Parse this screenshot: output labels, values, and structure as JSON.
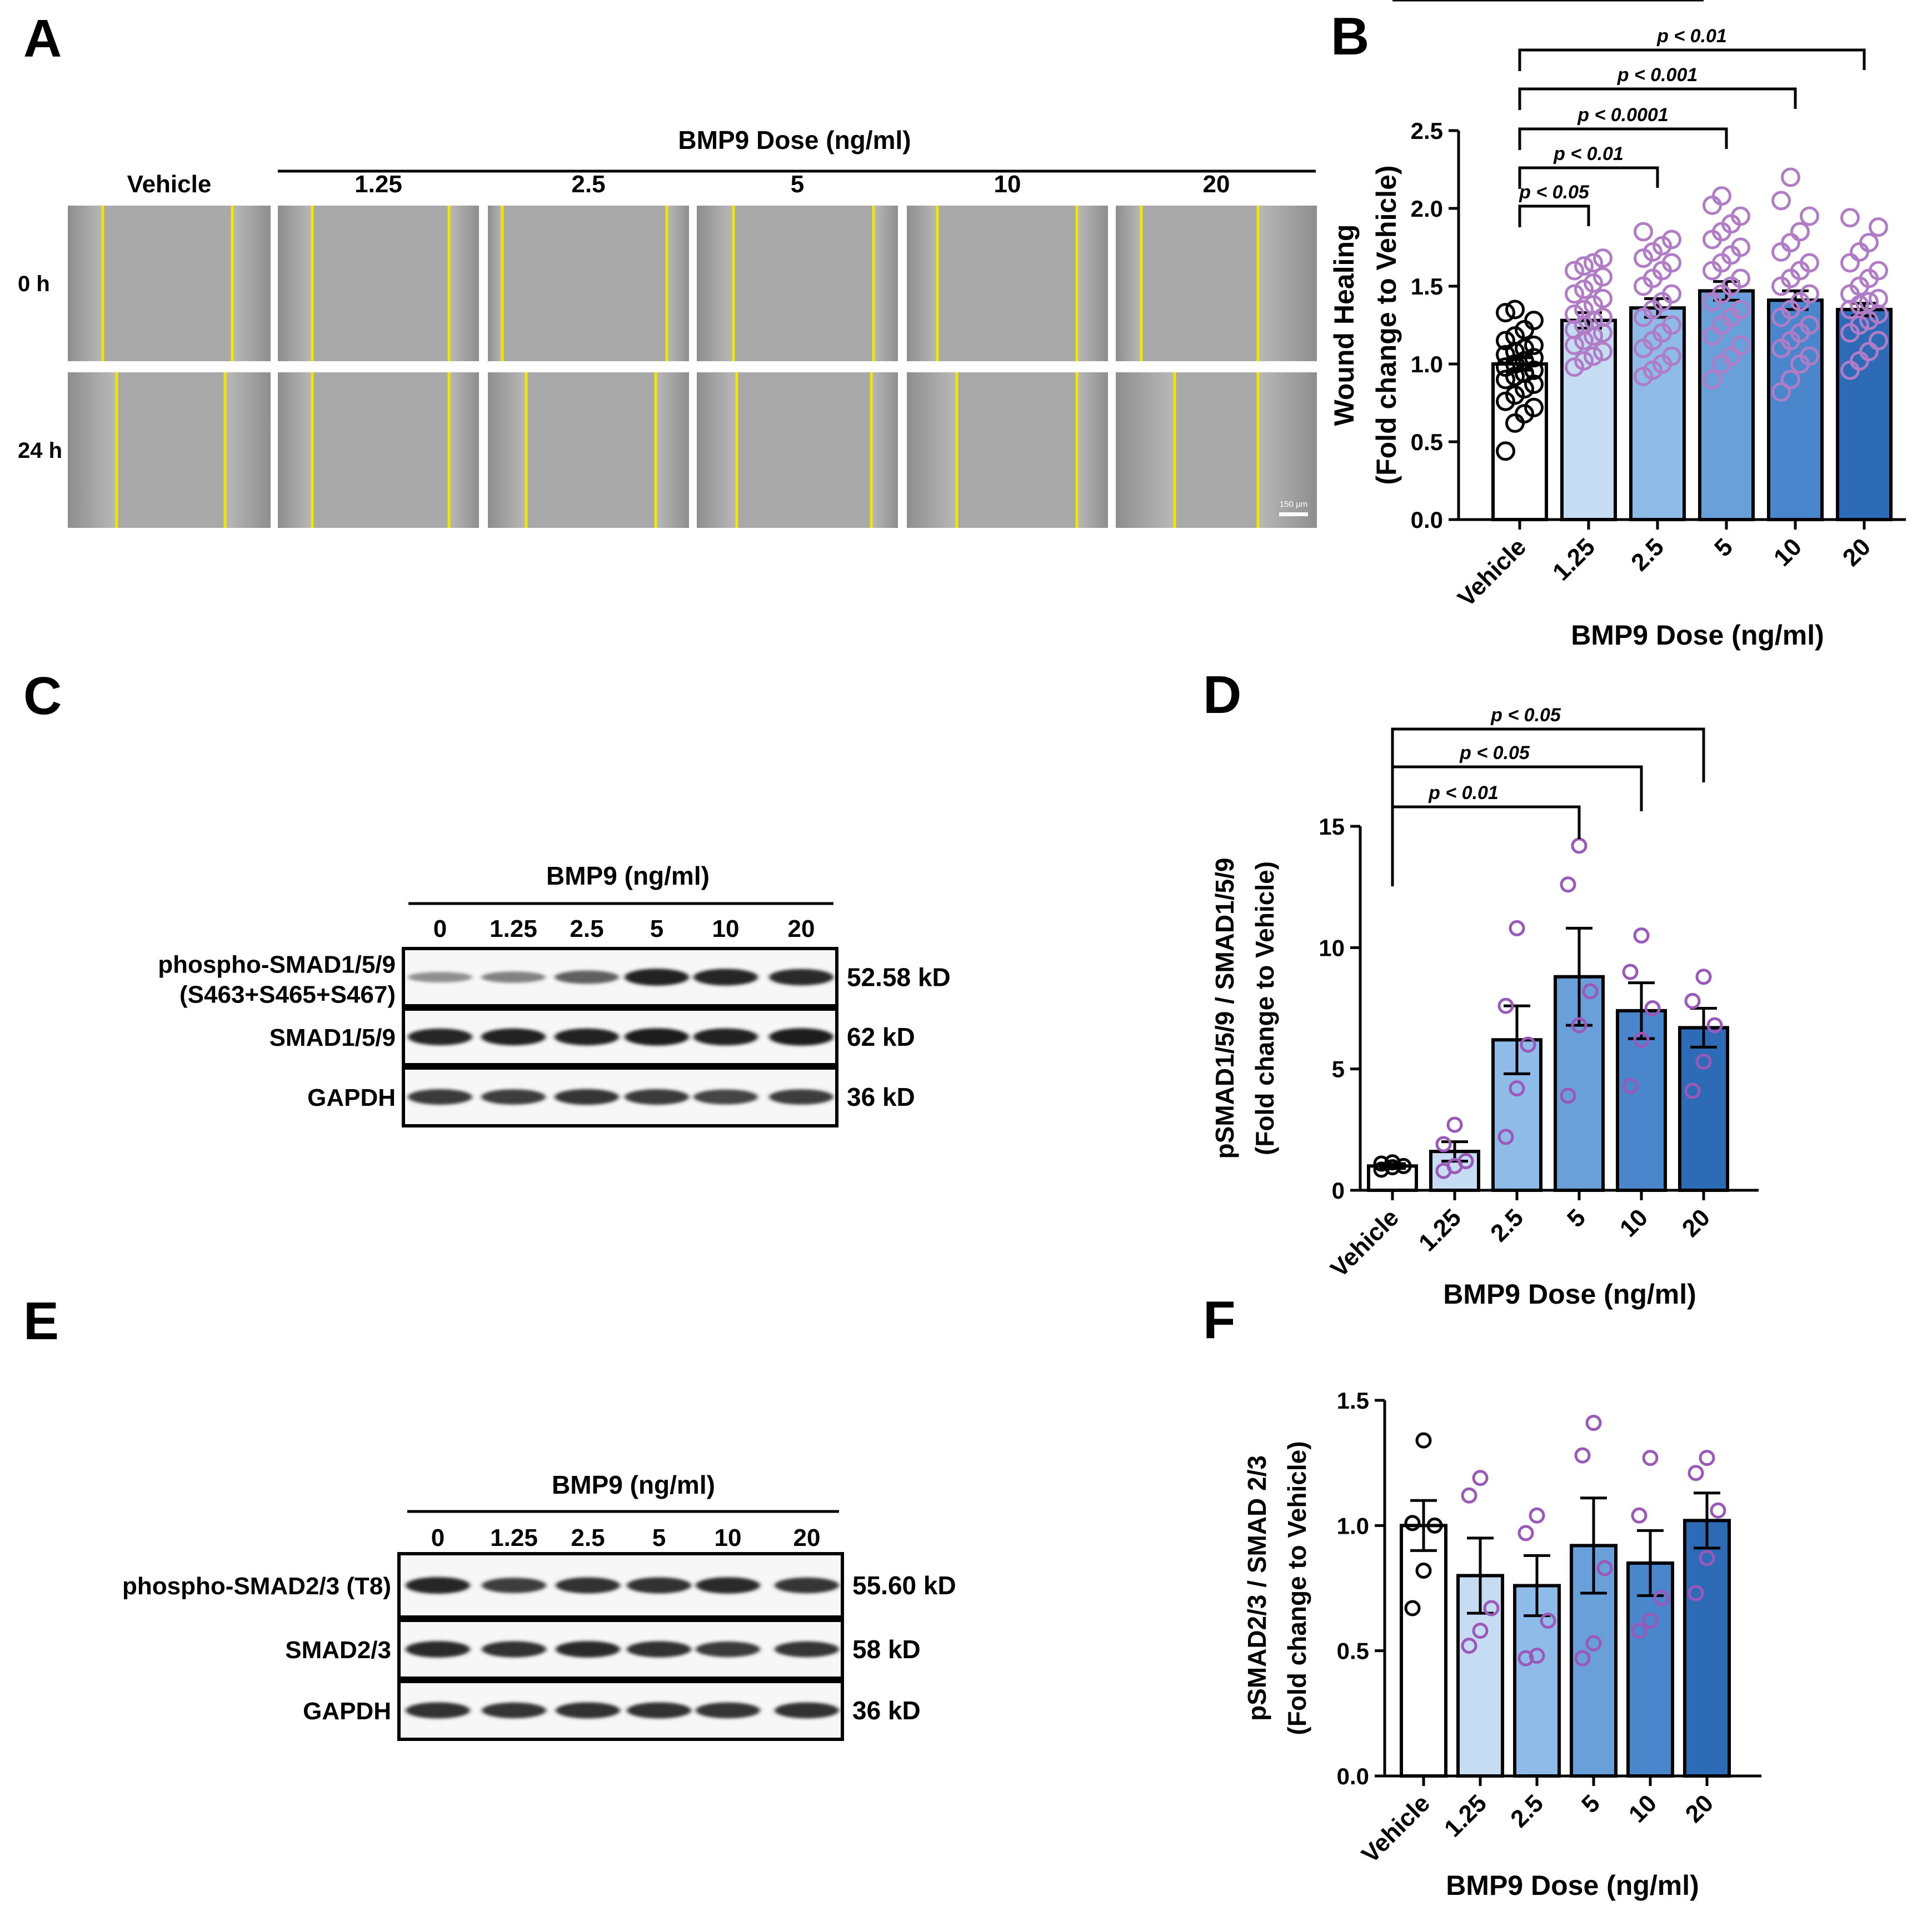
{
  "panels": {
    "A": {
      "letter": "A",
      "dose_header": "BMP9 Dose (ng/ml)",
      "columns": [
        "Vehicle",
        "1.25",
        "2.5",
        "5",
        "10",
        "20"
      ],
      "rows": [
        "0 h",
        "24 h"
      ],
      "scale_bar": "150 µm",
      "line_color": "#f2e500"
    },
    "C": {
      "letter": "C",
      "treatment_label": "BMP9 (ng/ml)",
      "lanes": [
        "0",
        "1.25",
        "2.5",
        "5",
        "10",
        "20"
      ],
      "blots": [
        {
          "name_line1": "phospho-SMAD1/5/9",
          "name_line2": "(S463+S465+S467)",
          "size": "52.58 kD",
          "intensity": [
            0.35,
            0.42,
            0.6,
            0.92,
            0.9,
            0.88
          ]
        },
        {
          "name_line1": "SMAD1/5/9",
          "name_line2": "",
          "size": "62 kD",
          "intensity": [
            0.9,
            0.92,
            0.92,
            0.95,
            0.93,
            0.96
          ]
        },
        {
          "name_line1": "GAPDH",
          "name_line2": "",
          "size": "36 kD",
          "intensity": [
            0.8,
            0.78,
            0.82,
            0.8,
            0.75,
            0.78
          ]
        }
      ]
    },
    "E": {
      "letter": "E",
      "treatment_label": "BMP9 (ng/ml)",
      "lanes": [
        "0",
        "1.25",
        "2.5",
        "5",
        "10",
        "20"
      ],
      "blots": [
        {
          "name_line1": "phospho-SMAD2/3 (T8)",
          "name_line2": "",
          "size": "55.60 kD",
          "intensity": [
            0.9,
            0.78,
            0.85,
            0.85,
            0.88,
            0.82
          ]
        },
        {
          "name_line1": "SMAD2/3",
          "name_line2": "",
          "size": "58 kD",
          "intensity": [
            0.88,
            0.85,
            0.88,
            0.85,
            0.8,
            0.82
          ]
        },
        {
          "name_line1": "GAPDH",
          "name_line2": "",
          "size": "36 kD",
          "intensity": [
            0.85,
            0.82,
            0.85,
            0.85,
            0.83,
            0.84
          ]
        }
      ]
    }
  },
  "chart_data": [
    {
      "panel": "B",
      "type": "bar",
      "letter": "B",
      "categories": [
        "Vehicle",
        "1.25",
        "2.5",
        "5",
        "10",
        "20"
      ],
      "values": [
        1.0,
        1.28,
        1.36,
        1.47,
        1.41,
        1.35
      ],
      "errors": [
        0.04,
        0.05,
        0.06,
        0.06,
        0.06,
        0.04
      ],
      "colors": [
        "#ffffff",
        "#c5dcf3",
        "#8fbbe8",
        "#6aa0da",
        "#4a86cc",
        "#2e6bb7"
      ],
      "xlabel": "BMP9 Dose (ng/ml)",
      "ylabel_line1": "Wound Healing",
      "ylabel_line2": "(Fold change to  Vehicle)",
      "ylim": [
        0,
        2.5
      ],
      "yticks": [
        "0.0",
        "0.5",
        "1.0",
        "1.5",
        "2.0",
        "2.5"
      ],
      "points": [
        [
          0.44,
          0.62,
          0.68,
          0.72,
          0.76,
          0.8,
          0.84,
          0.87,
          0.9,
          0.92,
          0.94,
          0.96,
          0.98,
          1.0,
          1.02,
          1.04,
          1.06,
          1.08,
          1.1,
          1.12,
          1.15,
          1.18,
          1.22,
          1.28,
          1.33,
          1.35
        ],
        [
          0.98,
          1.02,
          1.05,
          1.08,
          1.12,
          1.15,
          1.18,
          1.2,
          1.22,
          1.25,
          1.28,
          1.3,
          1.32,
          1.35,
          1.38,
          1.42,
          1.45,
          1.48,
          1.52,
          1.56,
          1.6,
          1.63,
          1.65,
          1.68
        ],
        [
          0.92,
          0.96,
          1.0,
          1.05,
          1.1,
          1.15,
          1.2,
          1.25,
          1.3,
          1.35,
          1.4,
          1.45,
          1.5,
          1.55,
          1.6,
          1.65,
          1.68,
          1.72,
          1.76,
          1.8,
          1.85
        ],
        [
          0.9,
          1.0,
          1.05,
          1.12,
          1.18,
          1.25,
          1.3,
          1.35,
          1.4,
          1.45,
          1.5,
          1.55,
          1.6,
          1.65,
          1.7,
          1.75,
          1.8,
          1.85,
          1.9,
          1.95,
          2.02,
          2.08
        ],
        [
          0.82,
          0.9,
          1.0,
          1.05,
          1.1,
          1.15,
          1.2,
          1.25,
          1.3,
          1.35,
          1.4,
          1.45,
          1.5,
          1.55,
          1.6,
          1.65,
          1.72,
          1.78,
          1.85,
          1.95,
          2.05,
          2.2
        ],
        [
          0.96,
          1.02,
          1.08,
          1.15,
          1.2,
          1.25,
          1.28,
          1.32,
          1.35,
          1.38,
          1.4,
          1.42,
          1.45,
          1.5,
          1.55,
          1.6,
          1.65,
          1.72,
          1.78,
          1.88,
          1.94
        ]
      ],
      "point_colors": [
        "#000000",
        "#b07cc6",
        "#b07cc6",
        "#b07cc6",
        "#b07cc6",
        "#b07cc6"
      ],
      "significance": [
        {
          "to": 1,
          "label": "p < 0.05"
        },
        {
          "to": 2,
          "label": "p < 0.01"
        },
        {
          "to": 3,
          "label": "p < 0.0001"
        },
        {
          "to": 4,
          "label": "p < 0.001"
        },
        {
          "to": 5,
          "label": "p < 0.01"
        }
      ]
    },
    {
      "panel": "D",
      "type": "bar",
      "letter": "D",
      "categories": [
        "Vehicle",
        "1.25",
        "2.5",
        "5",
        "10",
        "20"
      ],
      "values": [
        1.0,
        1.6,
        6.2,
        8.8,
        7.4,
        6.7
      ],
      "errors": [
        0.1,
        0.4,
        1.4,
        2.0,
        1.15,
        0.8
      ],
      "colors": [
        "#ffffff",
        "#c5dcf3",
        "#8fbbe8",
        "#6aa0da",
        "#4a86cc",
        "#2e6bb7"
      ],
      "xlabel": "BMP9 Dose (ng/ml)",
      "ylabel_line1": "pSMAD1/5/9 / SMAD1/5/9",
      "ylabel_line2": "(Fold change to Vehicle)",
      "ylim": [
        0,
        15
      ],
      "yticks": [
        "0",
        "5",
        "10",
        "15"
      ],
      "points": [
        [
          0.85,
          0.95,
          1.0,
          1.1,
          1.15
        ],
        [
          0.8,
          1.0,
          1.2,
          1.9,
          2.7
        ],
        [
          2.2,
          4.2,
          6.0,
          7.6,
          10.8
        ],
        [
          3.9,
          6.8,
          8.2,
          12.6,
          14.2
        ],
        [
          4.3,
          6.2,
          7.5,
          9.0,
          10.5
        ],
        [
          4.1,
          5.3,
          6.8,
          7.8,
          8.8
        ]
      ],
      "point_colors": [
        "#000000",
        "#9a58b8",
        "#9a58b8",
        "#9a58b8",
        "#9a58b8",
        "#9a58b8"
      ],
      "significance": [
        {
          "to": 3,
          "label": "p < 0.01"
        },
        {
          "to": 4,
          "label": "p < 0.05"
        },
        {
          "to": 5,
          "label": "p < 0.05"
        }
      ]
    },
    {
      "panel": "F",
      "type": "bar",
      "letter": "F",
      "categories": [
        "Vehicle",
        "1.25",
        "2.5",
        "5",
        "10",
        "20"
      ],
      "values": [
        1.0,
        0.8,
        0.76,
        0.92,
        0.85,
        1.02
      ],
      "errors": [
        0.1,
        0.15,
        0.12,
        0.19,
        0.13,
        0.11
      ],
      "colors": [
        "#ffffff",
        "#c5dcf3",
        "#8fbbe8",
        "#6aa0da",
        "#4a86cc",
        "#2e6bb7"
      ],
      "xlabel": "BMP9 Dose (ng/ml)",
      "ylabel_line1": "pSMAD2/3 / SMAD 2/3",
      "ylabel_line2": "(Fold change to Vehicle)",
      "ylim": [
        0,
        1.5
      ],
      "yticks": [
        "0.0",
        "0.5",
        "1.0",
        "1.5"
      ],
      "points": [
        [
          0.67,
          0.82,
          1.0,
          1.01,
          1.34
        ],
        [
          0.52,
          0.58,
          0.67,
          1.12,
          1.19
        ],
        [
          0.47,
          0.48,
          0.62,
          0.97,
          1.04
        ],
        [
          0.47,
          0.53,
          0.83,
          1.28,
          1.41
        ],
        [
          0.58,
          0.62,
          0.71,
          1.04,
          1.27
        ],
        [
          0.73,
          0.87,
          1.06,
          1.21,
          1.27
        ]
      ],
      "point_colors": [
        "#000000",
        "#9a58b8",
        "#9a58b8",
        "#9a58b8",
        "#9a58b8",
        "#9a58b8"
      ],
      "significance": []
    }
  ]
}
